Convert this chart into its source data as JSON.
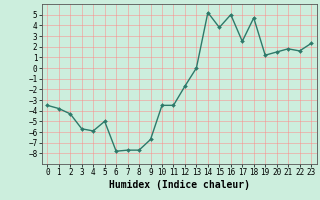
{
  "x": [
    0,
    1,
    2,
    3,
    4,
    5,
    6,
    7,
    8,
    9,
    10,
    11,
    12,
    13,
    14,
    15,
    16,
    17,
    18,
    19,
    20,
    21,
    22,
    23
  ],
  "y": [
    -3.5,
    -3.8,
    -4.3,
    -5.7,
    -5.9,
    -5.0,
    -7.8,
    -7.7,
    -7.7,
    -6.7,
    -3.5,
    -3.5,
    -1.7,
    0.0,
    5.2,
    3.8,
    5.0,
    2.5,
    4.7,
    1.2,
    1.5,
    1.8,
    1.6,
    2.3
  ],
  "line_color": "#2d7a6a",
  "marker": "D",
  "marker_size": 2.0,
  "line_width": 1.0,
  "xlabel": "Humidex (Indice chaleur)",
  "xlabel_fontsize": 7,
  "ylim": [
    -9,
    6
  ],
  "xlim": [
    -0.5,
    23.5
  ],
  "yticks": [
    -8,
    -7,
    -6,
    -5,
    -4,
    -3,
    -2,
    -1,
    0,
    1,
    2,
    3,
    4,
    5
  ],
  "xticks": [
    0,
    1,
    2,
    3,
    4,
    5,
    6,
    7,
    8,
    9,
    10,
    11,
    12,
    13,
    14,
    15,
    16,
    17,
    18,
    19,
    20,
    21,
    22,
    23
  ],
  "bg_color": "#cceedd",
  "grid_color": "#ff8888",
  "grid_alpha": 0.7,
  "tick_fontsize": 5.5
}
